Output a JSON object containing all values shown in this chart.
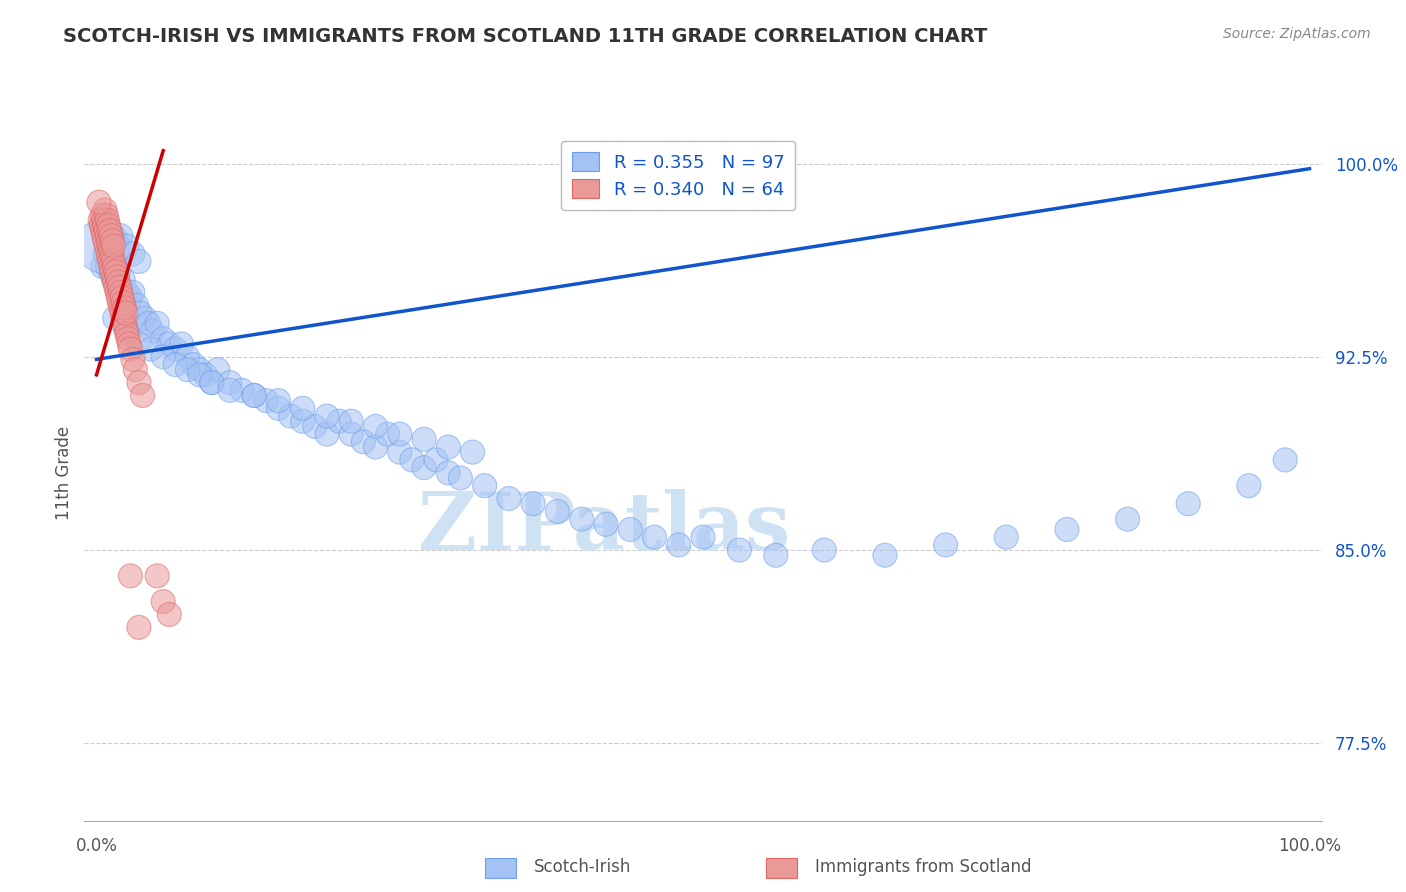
{
  "title": "SCOTCH-IRISH VS IMMIGRANTS FROM SCOTLAND 11TH GRADE CORRELATION CHART",
  "source": "Source: ZipAtlas.com",
  "ylabel": "11th Grade",
  "ytick_labels": [
    "77.5%",
    "85.0%",
    "92.5%",
    "100.0%"
  ],
  "ytick_values": [
    0.775,
    0.85,
    0.925,
    1.0
  ],
  "blue_R": "0.355",
  "blue_N": "97",
  "pink_R": "0.340",
  "pink_N": "64",
  "blue_color": "#a4c2f4",
  "blue_edge_color": "#6d9eeb",
  "pink_color": "#ea9999",
  "pink_edge_color": "#e06666",
  "blue_line_color": "#1155cc",
  "pink_line_color": "#cc0000",
  "watermark": "ZIPatlas",
  "watermark_color": "#cfe2f3",
  "legend_blue_label": "Scotch-Irish",
  "legend_pink_label": "Immigrants from Scotland",
  "blue_scatter_x": [
    0.005,
    0.007,
    0.009,
    0.01,
    0.012,
    0.014,
    0.016,
    0.018,
    0.02,
    0.022,
    0.025,
    0.028,
    0.03,
    0.033,
    0.036,
    0.04,
    0.043,
    0.046,
    0.05,
    0.055,
    0.06,
    0.065,
    0.07,
    0.075,
    0.08,
    0.085,
    0.09,
    0.095,
    0.1,
    0.11,
    0.12,
    0.13,
    0.14,
    0.15,
    0.16,
    0.17,
    0.18,
    0.19,
    0.2,
    0.21,
    0.22,
    0.23,
    0.24,
    0.25,
    0.26,
    0.27,
    0.28,
    0.29,
    0.3,
    0.32,
    0.34,
    0.36,
    0.38,
    0.4,
    0.42,
    0.44,
    0.46,
    0.48,
    0.5,
    0.53,
    0.56,
    0.6,
    0.65,
    0.7,
    0.75,
    0.8,
    0.85,
    0.9,
    0.95,
    0.98,
    0.015,
    0.025,
    0.035,
    0.045,
    0.055,
    0.065,
    0.075,
    0.085,
    0.095,
    0.11,
    0.13,
    0.15,
    0.17,
    0.19,
    0.21,
    0.23,
    0.25,
    0.27,
    0.29,
    0.31,
    0.005,
    0.01,
    0.015,
    0.02,
    0.025,
    0.03,
    0.035
  ],
  "blue_scatter_y": [
    0.96,
    0.965,
    0.96,
    0.965,
    0.958,
    0.955,
    0.96,
    0.958,
    0.952,
    0.955,
    0.95,
    0.948,
    0.95,
    0.945,
    0.942,
    0.94,
    0.938,
    0.935,
    0.938,
    0.932,
    0.93,
    0.928,
    0.93,
    0.925,
    0.922,
    0.92,
    0.918,
    0.915,
    0.92,
    0.915,
    0.912,
    0.91,
    0.908,
    0.905,
    0.902,
    0.9,
    0.898,
    0.895,
    0.9,
    0.895,
    0.892,
    0.89,
    0.895,
    0.888,
    0.885,
    0.882,
    0.885,
    0.88,
    0.878,
    0.875,
    0.87,
    0.868,
    0.865,
    0.862,
    0.86,
    0.858,
    0.855,
    0.852,
    0.855,
    0.85,
    0.848,
    0.85,
    0.848,
    0.852,
    0.855,
    0.858,
    0.862,
    0.868,
    0.875,
    0.885,
    0.94,
    0.935,
    0.93,
    0.928,
    0.925,
    0.922,
    0.92,
    0.918,
    0.915,
    0.912,
    0.91,
    0.908,
    0.905,
    0.902,
    0.9,
    0.898,
    0.895,
    0.893,
    0.89,
    0.888,
    0.968,
    0.975,
    0.97,
    0.972,
    0.968,
    0.965,
    0.962
  ],
  "blue_scatter_sizes": [
    300,
    300,
    300,
    300,
    300,
    300,
    300,
    300,
    300,
    300,
    300,
    300,
    300,
    300,
    300,
    300,
    300,
    300,
    300,
    300,
    300,
    300,
    300,
    300,
    300,
    300,
    300,
    300,
    300,
    300,
    300,
    300,
    300,
    300,
    300,
    300,
    300,
    300,
    300,
    300,
    300,
    300,
    300,
    300,
    300,
    300,
    300,
    300,
    300,
    300,
    300,
    300,
    300,
    300,
    300,
    300,
    300,
    300,
    300,
    300,
    300,
    300,
    300,
    300,
    300,
    300,
    300,
    300,
    300,
    300,
    300,
    300,
    300,
    300,
    300,
    300,
    300,
    300,
    300,
    300,
    300,
    300,
    300,
    300,
    300,
    300,
    300,
    300,
    300,
    300,
    1500,
    300,
    300,
    300,
    300,
    300,
    300
  ],
  "pink_scatter_x": [
    0.003,
    0.004,
    0.005,
    0.006,
    0.007,
    0.008,
    0.009,
    0.01,
    0.011,
    0.012,
    0.013,
    0.014,
    0.015,
    0.016,
    0.017,
    0.018,
    0.019,
    0.02,
    0.021,
    0.022,
    0.023,
    0.024,
    0.025,
    0.026,
    0.027,
    0.028,
    0.03,
    0.032,
    0.035,
    0.038,
    0.005,
    0.006,
    0.007,
    0.008,
    0.009,
    0.01,
    0.011,
    0.012,
    0.013,
    0.014,
    0.015,
    0.016,
    0.017,
    0.018,
    0.019,
    0.02,
    0.021,
    0.022,
    0.023,
    0.024,
    0.007,
    0.008,
    0.009,
    0.01,
    0.011,
    0.012,
    0.013,
    0.014,
    0.028,
    0.035,
    0.002,
    0.05,
    0.055,
    0.06
  ],
  "pink_scatter_y": [
    0.978,
    0.976,
    0.974,
    0.972,
    0.97,
    0.968,
    0.966,
    0.964,
    0.962,
    0.96,
    0.958,
    0.956,
    0.954,
    0.952,
    0.95,
    0.948,
    0.946,
    0.944,
    0.942,
    0.94,
    0.938,
    0.936,
    0.934,
    0.932,
    0.93,
    0.928,
    0.924,
    0.92,
    0.915,
    0.91,
    0.98,
    0.978,
    0.976,
    0.974,
    0.972,
    0.97,
    0.968,
    0.966,
    0.964,
    0.962,
    0.96,
    0.958,
    0.956,
    0.954,
    0.952,
    0.95,
    0.948,
    0.946,
    0.944,
    0.942,
    0.982,
    0.98,
    0.978,
    0.976,
    0.974,
    0.972,
    0.97,
    0.968,
    0.84,
    0.82,
    0.985,
    0.84,
    0.83,
    0.825
  ],
  "pink_scatter_sizes": [
    300,
    300,
    300,
    300,
    300,
    300,
    300,
    300,
    300,
    300,
    300,
    300,
    300,
    300,
    300,
    300,
    300,
    300,
    300,
    300,
    300,
    300,
    300,
    300,
    300,
    300,
    300,
    300,
    300,
    300,
    300,
    300,
    300,
    300,
    300,
    300,
    300,
    300,
    300,
    300,
    300,
    300,
    300,
    300,
    300,
    300,
    300,
    300,
    300,
    300,
    300,
    300,
    300,
    300,
    300,
    300,
    300,
    300,
    300,
    300,
    300,
    300,
    300,
    300
  ],
  "blue_line_x": [
    0.0,
    1.0
  ],
  "blue_line_y": [
    0.924,
    0.998
  ],
  "pink_line_x": [
    0.0,
    0.055
  ],
  "pink_line_y": [
    0.918,
    1.005
  ],
  "xlim": [
    -0.01,
    1.01
  ],
  "ylim": [
    0.745,
    1.015
  ],
  "grid_color": "#cccccc",
  "tick_color": "#1155cc",
  "background_color": "#ffffff"
}
